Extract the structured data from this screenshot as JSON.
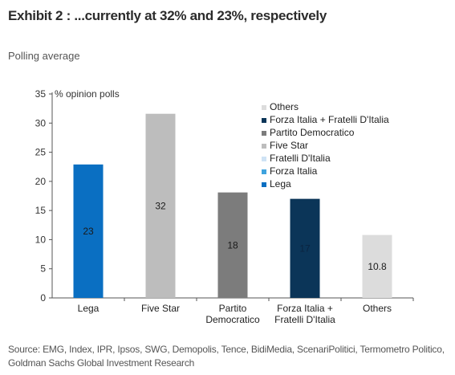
{
  "header": {
    "title": "Exhibit 2 : ...currently at 32% and 23%, respectively",
    "subtitle": "Polling average"
  },
  "footer": {
    "source": "Source: EMG, Index, IPR, Ipsos, SWG, Demopolis, Tence, BidiMedia, ScenariPolitici, Termometro Politico, Goldman Sachs Global Investment Research"
  },
  "chart_data": {
    "type": "bar",
    "ylabel": "% opinion polls",
    "ylim": [
      0,
      35
    ],
    "yticks": [
      0,
      5,
      10,
      15,
      20,
      25,
      30,
      35
    ],
    "grid": false,
    "legend_position": "top-right",
    "categories": [
      [
        "Lega"
      ],
      [
        "Five Star"
      ],
      [
        "Partito",
        "Democratico"
      ],
      [
        "Forza Italia +",
        "Fratelli D'Italia"
      ],
      [
        "Others"
      ]
    ],
    "values": [
      22.9,
      31.6,
      18.1,
      17.0,
      10.8
    ],
    "data_labels": [
      "23",
      "32",
      "18",
      "17",
      "10.8"
    ],
    "bar_colors": [
      "#0a6fc2",
      "#bdbdbd",
      "#7c7c7c",
      "#0b3558",
      "#dcdcdc"
    ],
    "label_colors": [
      "#1a1a1a",
      "#1a1a1a",
      "#1a1a1a",
      "#0b2440",
      "#1a1a1a"
    ],
    "legend": [
      {
        "label": "Others",
        "color": "#dcdcdc"
      },
      {
        "label": "Forza Italia + Fratelli D'Italia",
        "color": "#0b3558"
      },
      {
        "label": "Partito Democratico",
        "color": "#7c7c7c"
      },
      {
        "label": "Five Star",
        "color": "#bdbdbd"
      },
      {
        "label": "Fratelli D'Italia",
        "color": "#cfe3f5"
      },
      {
        "label": "Forza Italia",
        "color": "#3fa3de"
      },
      {
        "label": "Lega",
        "color": "#0a6fc2"
      }
    ]
  }
}
